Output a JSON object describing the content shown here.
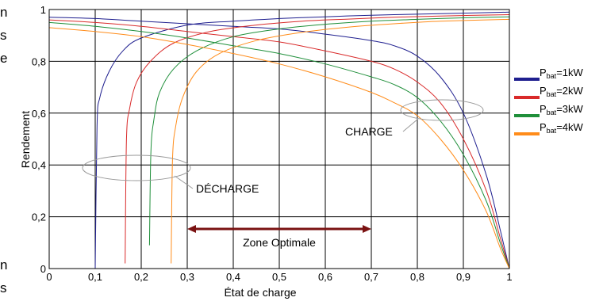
{
  "page_strip": [
    "n",
    "s",
    "e",
    "",
    "",
    "",
    "",
    "",
    "",
    "",
    "",
    "n",
    "s"
  ],
  "chart_data": {
    "type": "line",
    "xlabel": "État de charge",
    "ylabel": "Rendement",
    "xlim": [
      0,
      1
    ],
    "ylim": [
      0,
      1
    ],
    "x_ticks": [
      "0",
      "0,1",
      "0,2",
      "0,3",
      "0,4",
      "0,5",
      "0,6",
      "0,7",
      "0,8",
      "0,9",
      "1"
    ],
    "y_ticks": [
      "0",
      "0,2",
      "0,4",
      "0,6",
      "0,8",
      "1"
    ],
    "grid": true,
    "legend_position": "right",
    "series": [
      {
        "name": "Pbat=1kW",
        "sub": "bat",
        "prefix": "P",
        "suffix": "=1kW",
        "color": "#1f1f8f",
        "charge": [
          [
            0.0,
            0.97
          ],
          [
            0.1,
            0.965
          ],
          [
            0.2,
            0.955
          ],
          [
            0.3,
            0.945
          ],
          [
            0.4,
            0.935
          ],
          [
            0.5,
            0.925
          ],
          [
            0.6,
            0.905
          ],
          [
            0.7,
            0.88
          ],
          [
            0.75,
            0.86
          ],
          [
            0.8,
            0.82
          ],
          [
            0.85,
            0.74
          ],
          [
            0.9,
            0.6
          ],
          [
            0.95,
            0.36
          ],
          [
            0.98,
            0.15
          ],
          [
            1.0,
            0.0
          ]
        ],
        "decharge": [
          [
            0.1,
            0.0
          ],
          [
            0.104,
            0.55
          ],
          [
            0.11,
            0.66
          ],
          [
            0.13,
            0.76
          ],
          [
            0.16,
            0.84
          ],
          [
            0.2,
            0.89
          ],
          [
            0.3,
            0.94
          ],
          [
            0.4,
            0.955
          ],
          [
            0.5,
            0.965
          ],
          [
            0.6,
            0.972
          ],
          [
            0.7,
            0.978
          ],
          [
            0.8,
            0.982
          ],
          [
            0.9,
            0.986
          ],
          [
            1.0,
            0.99
          ]
        ]
      },
      {
        "name": "Pbat=2kW",
        "sub": "bat",
        "prefix": "P",
        "suffix": "=2kW",
        "color": "#d92a2a",
        "charge": [
          [
            0.0,
            0.96
          ],
          [
            0.1,
            0.95
          ],
          [
            0.2,
            0.935
          ],
          [
            0.3,
            0.915
          ],
          [
            0.4,
            0.895
          ],
          [
            0.5,
            0.875
          ],
          [
            0.6,
            0.84
          ],
          [
            0.7,
            0.8
          ],
          [
            0.75,
            0.77
          ],
          [
            0.8,
            0.72
          ],
          [
            0.85,
            0.64
          ],
          [
            0.9,
            0.5
          ],
          [
            0.95,
            0.3
          ],
          [
            0.98,
            0.12
          ],
          [
            1.0,
            0.0
          ]
        ],
        "decharge": [
          [
            0.165,
            0.02
          ],
          [
            0.168,
            0.5
          ],
          [
            0.175,
            0.62
          ],
          [
            0.19,
            0.72
          ],
          [
            0.22,
            0.8
          ],
          [
            0.27,
            0.87
          ],
          [
            0.35,
            0.915
          ],
          [
            0.45,
            0.94
          ],
          [
            0.55,
            0.955
          ],
          [
            0.65,
            0.963
          ],
          [
            0.75,
            0.97
          ],
          [
            0.85,
            0.975
          ],
          [
            1.0,
            0.98
          ]
        ]
      },
      {
        "name": "Pbat=3kW",
        "sub": "bat",
        "prefix": "P",
        "suffix": "=3kW",
        "color": "#1f8f3a",
        "charge": [
          [
            0.0,
            0.95
          ],
          [
            0.1,
            0.935
          ],
          [
            0.2,
            0.915
          ],
          [
            0.3,
            0.89
          ],
          [
            0.4,
            0.86
          ],
          [
            0.5,
            0.83
          ],
          [
            0.6,
            0.79
          ],
          [
            0.7,
            0.74
          ],
          [
            0.75,
            0.71
          ],
          [
            0.8,
            0.66
          ],
          [
            0.85,
            0.57
          ],
          [
            0.9,
            0.44
          ],
          [
            0.95,
            0.26
          ],
          [
            0.98,
            0.1
          ],
          [
            1.0,
            0.0
          ]
        ],
        "decharge": [
          [
            0.218,
            0.09
          ],
          [
            0.221,
            0.45
          ],
          [
            0.228,
            0.58
          ],
          [
            0.24,
            0.68
          ],
          [
            0.27,
            0.77
          ],
          [
            0.32,
            0.84
          ],
          [
            0.4,
            0.895
          ],
          [
            0.5,
            0.925
          ],
          [
            0.6,
            0.943
          ],
          [
            0.7,
            0.955
          ],
          [
            0.8,
            0.962
          ],
          [
            0.9,
            0.968
          ],
          [
            1.0,
            0.972
          ]
        ]
      },
      {
        "name": "Pbat=4kW",
        "sub": "bat",
        "prefix": "P",
        "suffix": "=4kW",
        "color": "#ff8c1a",
        "charge": [
          [
            0.0,
            0.93
          ],
          [
            0.1,
            0.915
          ],
          [
            0.2,
            0.895
          ],
          [
            0.3,
            0.865
          ],
          [
            0.4,
            0.83
          ],
          [
            0.5,
            0.79
          ],
          [
            0.6,
            0.74
          ],
          [
            0.7,
            0.68
          ],
          [
            0.75,
            0.64
          ],
          [
            0.8,
            0.59
          ],
          [
            0.85,
            0.5
          ],
          [
            0.9,
            0.38
          ],
          [
            0.95,
            0.22
          ],
          [
            0.98,
            0.08
          ],
          [
            1.0,
            0.0
          ]
        ],
        "decharge": [
          [
            0.265,
            0.02
          ],
          [
            0.268,
            0.42
          ],
          [
            0.275,
            0.55
          ],
          [
            0.29,
            0.66
          ],
          [
            0.32,
            0.76
          ],
          [
            0.37,
            0.83
          ],
          [
            0.45,
            0.88
          ],
          [
            0.55,
            0.912
          ],
          [
            0.65,
            0.932
          ],
          [
            0.75,
            0.945
          ],
          [
            0.85,
            0.955
          ],
          [
            1.0,
            0.962
          ]
        ]
      }
    ],
    "annotations": {
      "charge_label": "CHARGE",
      "decharge_label": "DÉCHARGE",
      "zone_label": "Zone Optimale",
      "zone_range": [
        0.3,
        0.7
      ],
      "zone_color": "#7a1212"
    }
  }
}
